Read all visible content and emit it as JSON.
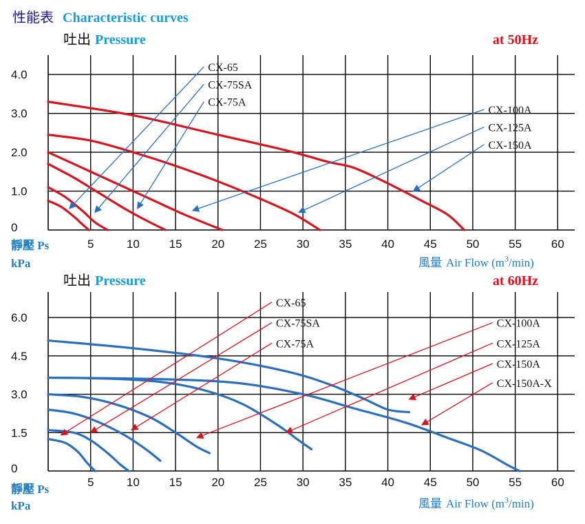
{
  "page_title": {
    "cjk": "性能表",
    "en": "Characteristic curves",
    "color": "#1a1a8c",
    "en_color": "#1e9ad6"
  },
  "chart_data": [
    {
      "type": "line",
      "heading_cjk": "吐出",
      "heading_en": "Pressure",
      "freq_label": "at  50Hz",
      "freq_color": "#d7141e",
      "line_color": "#d7141e",
      "arrow_color": "#2a6fbe",
      "ylabel_cjk": "靜壓 Ps",
      "ylabel_unit": "kPa",
      "xlabel_cjk": "風量",
      "xlabel_en": "Air Flow (m",
      "xlabel_sup": "3",
      "xlabel_tail": "/min)",
      "x_ticks": [
        "5",
        "10",
        "15",
        "20",
        "25",
        "30",
        "35",
        "40",
        "45",
        "50",
        "55",
        "60"
      ],
      "y_ticks": [
        "0",
        "1.0",
        "2.0",
        "3.0",
        "4.0"
      ],
      "xlim": [
        0,
        62
      ],
      "ylim": [
        0,
        4.5
      ],
      "series": [
        {
          "name": "CX-65",
          "points": [
            [
              0,
              0.75
            ],
            [
              1.5,
              0.6
            ],
            [
              3,
              0.35
            ],
            [
              4,
              0.15
            ],
            [
              4.8,
              0
            ]
          ]
        },
        {
          "name": "CX-75SA",
          "points": [
            [
              0,
              1.1
            ],
            [
              2,
              0.85
            ],
            [
              4,
              0.5
            ],
            [
              5.5,
              0.2
            ],
            [
              7,
              0
            ]
          ]
        },
        {
          "name": "CX-75A",
          "points": [
            [
              0,
              1.7
            ],
            [
              3,
              1.35
            ],
            [
              6,
              0.95
            ],
            [
              9,
              0.55
            ],
            [
              11.5,
              0.25
            ],
            [
              13.8,
              0
            ]
          ]
        },
        {
          "name": "CX-100A",
          "points": [
            [
              0,
              2.0
            ],
            [
              4,
              1.6
            ],
            [
              8,
              1.2
            ],
            [
              12,
              0.8
            ],
            [
              16,
              0.4
            ],
            [
              20.5,
              0
            ]
          ]
        },
        {
          "name": "CX-125A",
          "points": [
            [
              0,
              2.45
            ],
            [
              5,
              2.3
            ],
            [
              10,
              2.0
            ],
            [
              15,
              1.65
            ],
            [
              20,
              1.25
            ],
            [
              25,
              0.8
            ],
            [
              29,
              0.4
            ],
            [
              32,
              0
            ]
          ]
        },
        {
          "name": "CX-150A",
          "points": [
            [
              0,
              3.3
            ],
            [
              10,
              2.95
            ],
            [
              20,
              2.45
            ],
            [
              28,
              2.05
            ],
            [
              33,
              1.75
            ],
            [
              36,
              1.6
            ],
            [
              40,
              1.2
            ],
            [
              44,
              0.75
            ],
            [
              47,
              0.4
            ],
            [
              49,
              0
            ]
          ]
        }
      ],
      "labels": [
        {
          "text": "CX-65",
          "x": 18.5,
          "y": 4.2,
          "tx": 2.5,
          "ty": 0.55
        },
        {
          "text": "CX-75SA",
          "x": 18.5,
          "y": 3.75,
          "tx": 5.5,
          "ty": 0.45
        },
        {
          "text": "CX-75A",
          "x": 18.5,
          "y": 3.3,
          "tx": 10.5,
          "ty": 0.55
        },
        {
          "text": "CX-100A",
          "x": 51.5,
          "y": 3.1,
          "tx": 17,
          "ty": 0.5
        },
        {
          "text": "CX-125A",
          "x": 51.5,
          "y": 2.65,
          "tx": 29.5,
          "ty": 0.45
        },
        {
          "text": "CX-150A",
          "x": 51.5,
          "y": 2.2,
          "tx": 43,
          "ty": 1.0
        }
      ]
    },
    {
      "type": "line",
      "heading_cjk": "吐出",
      "heading_en": "Pressure",
      "freq_label": "at  60Hz",
      "freq_color": "#d7141e",
      "line_color": "#2a6fbe",
      "arrow_color": "#d7141e",
      "ylabel_cjk": "靜壓 Ps",
      "ylabel_unit": "kPa",
      "xlabel_cjk": "風量",
      "xlabel_en": "Air Flow (m",
      "xlabel_sup": "3",
      "xlabel_tail": "/min)",
      "x_ticks": [
        "5",
        "10",
        "15",
        "20",
        "25",
        "30",
        "35",
        "40",
        "45",
        "50",
        "55",
        "60"
      ],
      "y_ticks": [
        "0",
        "1.5",
        "3.0",
        "4.5",
        "6.0"
      ],
      "xlim": [
        0,
        62
      ],
      "ylim": [
        0,
        7
      ],
      "series": [
        {
          "name": "CX-65",
          "points": [
            [
              0,
              1.25
            ],
            [
              2,
              1.1
            ],
            [
              3.5,
              0.75
            ],
            [
              4.5,
              0.35
            ],
            [
              5.5,
              0
            ]
          ]
        },
        {
          "name": "CX-75SA",
          "points": [
            [
              0,
              1.6
            ],
            [
              3,
              1.5
            ],
            [
              5,
              1.2
            ],
            [
              7,
              0.7
            ],
            [
              8.5,
              0.25
            ],
            [
              9.5,
              0
            ]
          ]
        },
        {
          "name": "CX-75A",
          "points": [
            [
              0,
              2.4
            ],
            [
              3,
              2.25
            ],
            [
              6,
              1.9
            ],
            [
              9,
              1.4
            ],
            [
              11.5,
              0.85
            ],
            [
              13.2,
              0.4
            ]
          ]
        },
        {
          "name": "CX-100A",
          "points": [
            [
              0,
              3.0
            ],
            [
              4,
              2.9
            ],
            [
              8,
              2.6
            ],
            [
              12,
              2.1
            ],
            [
              15,
              1.5
            ],
            [
              17.5,
              0.95
            ],
            [
              19,
              0.7
            ]
          ]
        },
        {
          "name": "CX-125A",
          "points": [
            [
              0,
              3.65
            ],
            [
              8,
              3.6
            ],
            [
              14,
              3.45
            ],
            [
              19,
              3.1
            ],
            [
              23,
              2.6
            ],
            [
              27,
              1.8
            ],
            [
              29.5,
              1.2
            ],
            [
              31,
              0.85
            ]
          ]
        },
        {
          "name": "CX-150A",
          "points": [
            [
              0,
              5.1
            ],
            [
              10,
              4.8
            ],
            [
              20,
              4.4
            ],
            [
              28,
              3.9
            ],
            [
              33,
              3.4
            ],
            [
              37,
              2.85
            ],
            [
              40,
              2.4
            ],
            [
              42.5,
              2.3
            ]
          ]
        },
        {
          "name": "CX-150A-X",
          "points": [
            [
              0,
              3.65
            ],
            [
              12,
              3.6
            ],
            [
              22,
              3.45
            ],
            [
              30,
              3.0
            ],
            [
              36,
              2.45
            ],
            [
              42,
              1.9
            ],
            [
              47,
              1.3
            ],
            [
              51,
              0.8
            ],
            [
              54,
              0.25
            ],
            [
              55.5,
              0
            ]
          ]
        }
      ],
      "labels": [
        {
          "text": "CX-65",
          "x": 26.5,
          "y": 6.6,
          "tx": 1.5,
          "ty": 1.4
        },
        {
          "text": "CX-75SA",
          "x": 26.5,
          "y": 5.8,
          "tx": 5,
          "ty": 1.5
        },
        {
          "text": "CX-75A",
          "x": 26.5,
          "y": 5.0,
          "tx": 9.8,
          "ty": 1.6
        },
        {
          "text": "CX-100A",
          "x": 52.5,
          "y": 5.8,
          "tx": 17.5,
          "ty": 1.3
        },
        {
          "text": "CX-125A",
          "x": 52.5,
          "y": 5.0,
          "tx": 28,
          "ty": 1.5
        },
        {
          "text": "CX-150A",
          "x": 52.5,
          "y": 4.2,
          "tx": 42.5,
          "ty": 2.8
        },
        {
          "text": "CX-150A-X",
          "x": 52.5,
          "y": 3.45,
          "tx": 44,
          "ty": 1.8
        }
      ]
    }
  ]
}
